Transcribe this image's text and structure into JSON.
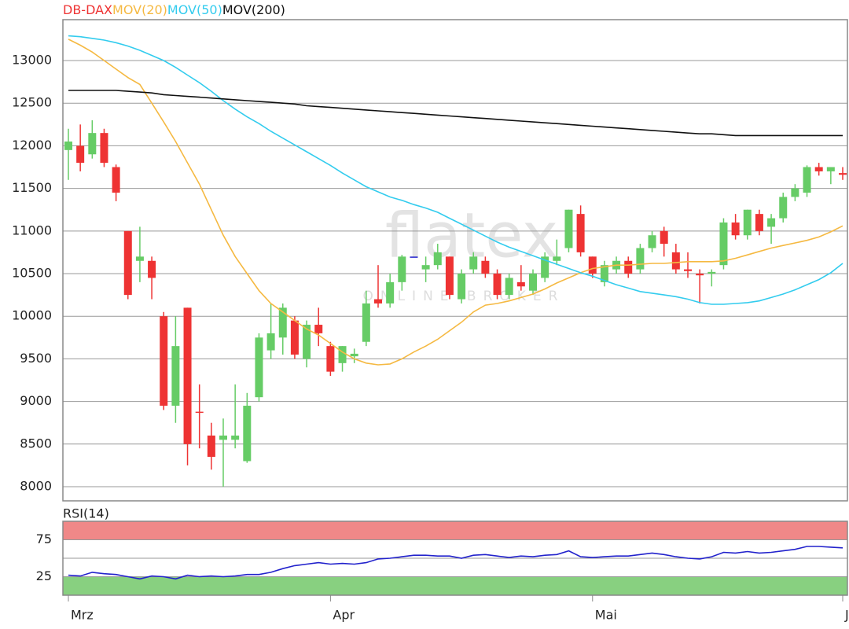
{
  "chart_data": [
    {
      "type": "candlestick",
      "name": "DB-DAX",
      "name_color": "#ee3333",
      "up_color": "#66cc66",
      "down_color": "#ee3333",
      "neutral_color": "#2222cc",
      "watermark": [
        "flatex",
        "ONLINE BROKER"
      ],
      "categories": [
        "Mrz",
        null,
        null,
        null,
        null,
        null,
        null,
        null,
        null,
        null,
        null,
        null,
        null,
        null,
        null,
        null,
        null,
        null,
        null,
        null,
        null,
        null,
        "Apr",
        null,
        null,
        null,
        null,
        null,
        null,
        null,
        null,
        null,
        null,
        null,
        null,
        null,
        null,
        null,
        null,
        null,
        null,
        null,
        null,
        null,
        "Mai",
        null,
        null,
        null,
        null,
        null,
        null,
        null,
        null,
        null,
        null,
        null,
        null,
        null,
        null,
        null,
        null,
        null,
        null,
        null,
        null,
        "J"
      ],
      "open": [
        11950,
        12000,
        11900,
        12150,
        11750,
        11000,
        10650,
        10650,
        10000,
        8950,
        10100,
        8880,
        8600,
        8550,
        8550,
        8300,
        9050,
        9600,
        9750,
        9950,
        9500,
        9900,
        9650,
        9450,
        9530,
        9700,
        10200,
        10150,
        10400,
        10700,
        10550,
        10600,
        10700,
        10200,
        10550,
        10650,
        10500,
        10250,
        10400,
        10300,
        10450,
        10650,
        10800,
        11200,
        10700,
        10400,
        10550,
        10650,
        10550,
        10800,
        11000,
        10750,
        10550,
        10500,
        10500,
        10600,
        11100,
        10950,
        11200,
        11050,
        11150,
        11400,
        11450,
        11750,
        11700,
        11680
      ],
      "high": [
        12200,
        12250,
        12300,
        12200,
        11780,
        11000,
        11050,
        10700,
        10050,
        10000,
        10100,
        9200,
        8750,
        8800,
        9200,
        9100,
        9800,
        10150,
        10150,
        10000,
        9950,
        10100,
        9700,
        9650,
        9620,
        10300,
        10600,
        10500,
        10720,
        10700,
        10700,
        10850,
        10700,
        10550,
        10750,
        10700,
        10550,
        10500,
        10600,
        10550,
        10750,
        10900,
        11250,
        11300,
        10700,
        10650,
        10700,
        10700,
        10850,
        11000,
        11050,
        10850,
        10750,
        10550,
        10550,
        11150,
        11200,
        11250,
        11250,
        11200,
        11450,
        11550,
        11770,
        11800,
        11750,
        11750
      ],
      "low": [
        11600,
        11700,
        11850,
        11750,
        11350,
        10200,
        10400,
        10200,
        8900,
        8750,
        8250,
        8450,
        8200,
        8000,
        8450,
        8280,
        9000,
        9500,
        9550,
        9500,
        9400,
        9650,
        9300,
        9350,
        9450,
        9650,
        10100,
        10100,
        10300,
        10700,
        10400,
        10550,
        10200,
        10150,
        10500,
        10450,
        10200,
        10200,
        10300,
        10250,
        10400,
        10600,
        10750,
        10700,
        10450,
        10350,
        10500,
        10450,
        10500,
        10750,
        10700,
        10500,
        10450,
        10150,
        10350,
        10550,
        10900,
        10900,
        10950,
        10850,
        11100,
        11350,
        11400,
        11650,
        11550,
        11600
      ],
      "close": [
        12050,
        11800,
        12150,
        11800,
        11450,
        10250,
        10700,
        10450,
        8950,
        9650,
        8500,
        8870,
        8350,
        8600,
        8600,
        8950,
        9750,
        9800,
        10100,
        9550,
        9900,
        9800,
        9350,
        9650,
        9560,
        10150,
        10150,
        10400,
        10700,
        10700,
        10600,
        10750,
        10250,
        10500,
        10700,
        10500,
        10250,
        10450,
        10350,
        10500,
        10700,
        10700,
        11250,
        10750,
        10500,
        10600,
        10650,
        10500,
        10800,
        10950,
        10850,
        10550,
        10530,
        10480,
        10520,
        11100,
        10950,
        11250,
        11000,
        11150,
        11400,
        11500,
        11750,
        11700,
        11750,
        11660
      ],
      "series": [
        {
          "name": "MOV(20)",
          "color": "#f5b942",
          "values": [
            13250,
            13180,
            13100,
            13000,
            12900,
            12800,
            12720,
            12500,
            12280,
            12050,
            11800,
            11550,
            11250,
            10950,
            10700,
            10500,
            10300,
            10150,
            10050,
            9950,
            9850,
            9780,
            9680,
            9580,
            9500,
            9450,
            9430,
            9440,
            9500,
            9580,
            9650,
            9730,
            9830,
            9930,
            10050,
            10130,
            10150,
            10180,
            10220,
            10260,
            10320,
            10390,
            10450,
            10510,
            10560,
            10580,
            10600,
            10600,
            10610,
            10620,
            10620,
            10630,
            10640,
            10640,
            10640,
            10650,
            10680,
            10720,
            10760,
            10800,
            10830,
            10860,
            10890,
            10930,
            10990,
            11060
          ]
        },
        {
          "name": "MOV(50)",
          "color": "#33ccee",
          "values": [
            13290,
            13280,
            13260,
            13240,
            13210,
            13170,
            13120,
            13060,
            13000,
            12920,
            12830,
            12740,
            12640,
            12530,
            12430,
            12340,
            12260,
            12170,
            12090,
            12010,
            11930,
            11850,
            11770,
            11680,
            11600,
            11520,
            11460,
            11400,
            11360,
            11310,
            11270,
            11220,
            11150,
            11080,
            11010,
            10940,
            10870,
            10810,
            10760,
            10710,
            10660,
            10610,
            10560,
            10510,
            10470,
            10420,
            10370,
            10330,
            10290,
            10270,
            10250,
            10230,
            10200,
            10160,
            10140,
            10140,
            10150,
            10160,
            10180,
            10220,
            10260,
            10310,
            10370,
            10430,
            10510,
            10620
          ]
        },
        {
          "name": "MOV(200)",
          "color": "#111111",
          "values": [
            12650,
            12650,
            12650,
            12650,
            12650,
            12640,
            12630,
            12620,
            12600,
            12590,
            12580,
            12570,
            12560,
            12550,
            12540,
            12530,
            12520,
            12510,
            12500,
            12490,
            12470,
            12460,
            12450,
            12440,
            12430,
            12420,
            12410,
            12400,
            12390,
            12380,
            12370,
            12360,
            12350,
            12340,
            12330,
            12320,
            12310,
            12300,
            12290,
            12280,
            12270,
            12260,
            12250,
            12240,
            12230,
            12220,
            12210,
            12200,
            12190,
            12180,
            12170,
            12160,
            12150,
            12140,
            12140,
            12130,
            12120,
            12120,
            12120,
            12120,
            12120,
            12120,
            12120,
            12120,
            12120,
            12120
          ]
        }
      ],
      "ylim": [
        7834,
        13480
      ],
      "yticks": [
        8000,
        8500,
        9000,
        9500,
        10000,
        10500,
        11000,
        11500,
        12000,
        12500,
        13000
      ],
      "grid": true
    },
    {
      "type": "line",
      "series": [
        {
          "name": "RSI(14)",
          "color": "#2222cc",
          "values": [
            27,
            26,
            31,
            29,
            28,
            25,
            22,
            26,
            25,
            22,
            27,
            25,
            26,
            25,
            26,
            28,
            28,
            31,
            36,
            40,
            42,
            44,
            42,
            43,
            42,
            44,
            49,
            50,
            52,
            54,
            54,
            53,
            53,
            50,
            54,
            55,
            53,
            51,
            53,
            52,
            54,
            55,
            60,
            52,
            51,
            52,
            53,
            53,
            55,
            57,
            55,
            52,
            50,
            49,
            52,
            58,
            57,
            59,
            57,
            58,
            60,
            62,
            66,
            66,
            65,
            64
          ]
        }
      ],
      "upper_band_color": "#f08888",
      "lower_band_color": "#88d080",
      "ylim": [
        0,
        100
      ],
      "yticks": [
        25,
        75
      ],
      "grid": true
    }
  ]
}
